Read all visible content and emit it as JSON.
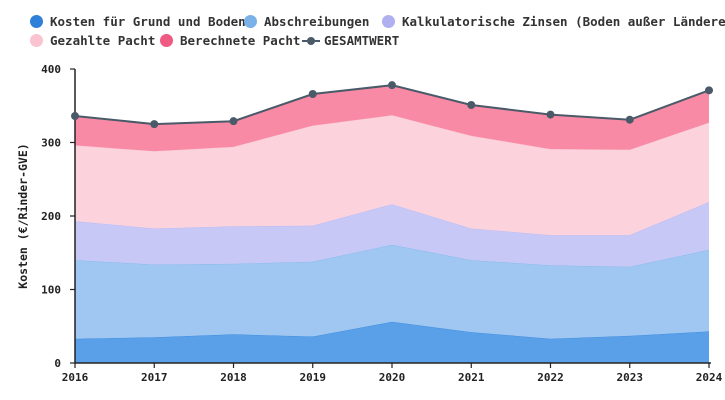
{
  "chart_data": {
    "type": "area",
    "stacked": true,
    "x": [
      "2016",
      "2017",
      "2018",
      "2019",
      "2020",
      "2021",
      "2022",
      "2023",
      "2024"
    ],
    "series": [
      {
        "name": "Kosten für Grund und Boden",
        "color": "#5aa0e8",
        "legend_color": "#2f80d8",
        "values": [
          33,
          35,
          39,
          36,
          56,
          42,
          33,
          37,
          43
        ]
      },
      {
        "name": "Abschreibungen",
        "color": "#9fc7f1",
        "legend_color": "#7ab1e8",
        "values": [
          107,
          99,
          96,
          102,
          105,
          98,
          100,
          94,
          111
        ]
      },
      {
        "name": "Kalkulatorische Zinsen (Boden außer Ländereien)",
        "color": "#c8c8f6",
        "legend_color": "#b0b0f0",
        "values": [
          53,
          49,
          51,
          49,
          55,
          43,
          41,
          43,
          65
        ]
      },
      {
        "name": "Gezahlte Pacht",
        "color": "#fcd3dc",
        "legend_color": "#f9c4d0",
        "values": [
          103,
          105,
          108,
          136,
          121,
          126,
          117,
          116,
          108
        ]
      },
      {
        "name": "Berechnete Pacht",
        "color": "#f98aa5",
        "legend_color": "#ee5a82",
        "values": [
          40,
          37,
          35,
          43,
          41,
          42,
          47,
          41,
          44
        ]
      }
    ],
    "total": {
      "name": "GESAMTWERT",
      "color": "#4a5a68",
      "values": [
        336,
        325,
        329,
        366,
        378,
        351,
        338,
        331,
        371
      ]
    },
    "ylabel": "Kosten (€/Rinder-GVE)",
    "xlabel": "",
    "ylim": [
      0,
      400
    ],
    "yticks": [
      "0",
      "100",
      "200",
      "300",
      "400"
    ],
    "legend_position": "top-left",
    "grid": false
  }
}
